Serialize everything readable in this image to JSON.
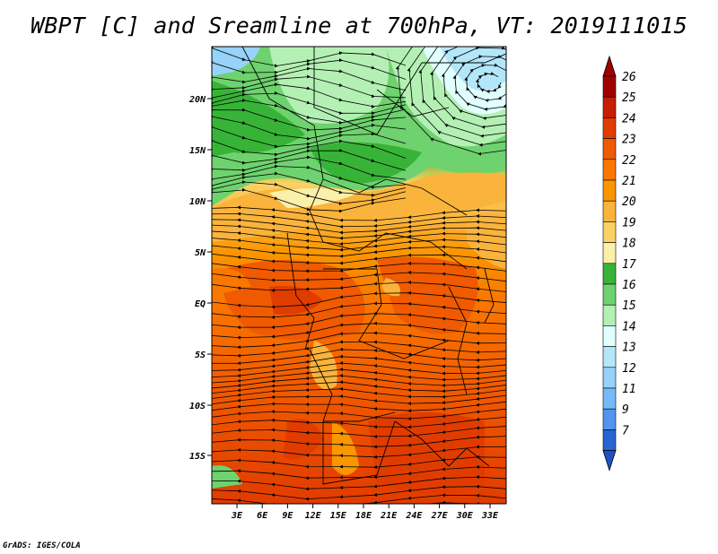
{
  "title": "WBPT [C] and Sreamline at 700hPa, VT: 2019111015",
  "credit": "GrADS: IGES/COLA",
  "map": {
    "lat_ticks": [
      "20N",
      "15N",
      "10N",
      "5N",
      "EQ",
      "5S",
      "10S",
      "15S"
    ],
    "lon_ticks": [
      "3E",
      "6E",
      "9E",
      "12E",
      "15E",
      "18E",
      "21E",
      "24E",
      "27E",
      "30E",
      "33E"
    ],
    "field_name": "WBPT [C]",
    "overlay": "Streamline"
  },
  "colorbar": {
    "levels": [
      "26",
      "25",
      "24",
      "23",
      "22",
      "21",
      "20",
      "19",
      "18",
      "17",
      "16",
      "15",
      "14",
      "13",
      "12",
      "11",
      "9",
      "7"
    ],
    "colors": [
      "#a00000",
      "#c81e00",
      "#e13c00",
      "#f05a00",
      "#fa7800",
      "#fa9600",
      "#fab43c",
      "#fad264",
      "#faf0aa",
      "#37b437",
      "#6ed26e",
      "#b4f0b4",
      "#e1ffff",
      "#b4e6fa",
      "#96d2fa",
      "#78b9fa",
      "#5096f0",
      "#2864d2"
    ],
    "top_color": "#a00000",
    "bottom_color": "#1e50c8"
  }
}
